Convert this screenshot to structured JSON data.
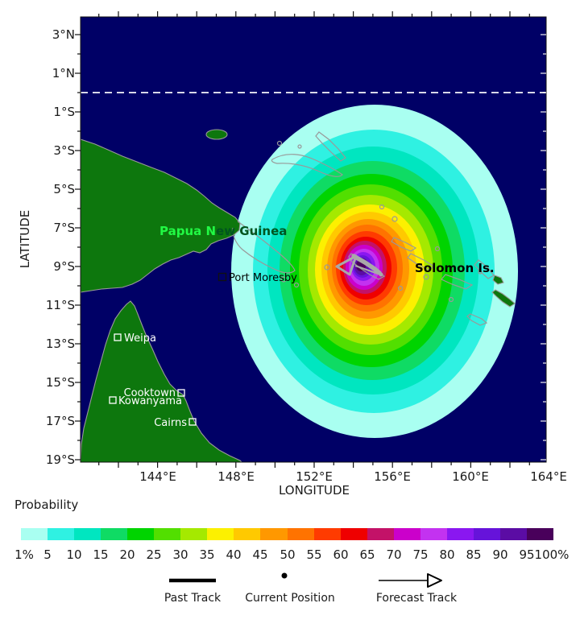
{
  "chart_data": {
    "type": "heatmap",
    "subtype": "tropical-cyclone-strike-probability-contour-map",
    "xlabel": "LONGITUDE",
    "ylabel": "LATITUDE",
    "x_ticks": [
      "144°E",
      "148°E",
      "152°E",
      "156°E",
      "160°E",
      "164°E"
    ],
    "y_ticks": [
      "3°N",
      "1°N",
      "1°S",
      "3°S",
      "5°S",
      "7°S",
      "9°S",
      "11°S",
      "13°S",
      "15°S",
      "17°S",
      "19°S"
    ],
    "x_range_deg_east": [
      141,
      164
    ],
    "y_range_deg_lat": [
      -19.1,
      3.9
    ],
    "grid": "off",
    "legend_position": "bottom",
    "probability_levels_percent": [
      1,
      5,
      10,
      15,
      20,
      25,
      30,
      35,
      40,
      45,
      50,
      55,
      60,
      65,
      70,
      75,
      80,
      85,
      90,
      95,
      100
    ],
    "palette": [
      "#A9FFF1",
      "#2FF1E2",
      "#00E6C0",
      "#0FDB64",
      "#00D400",
      "#52DF00",
      "#A5E900",
      "#FCF000",
      "#FFC900",
      "#FF9800",
      "#FF7300",
      "#FF3B00",
      "#EF0000",
      "#C31268",
      "#CB00CB",
      "#C332F0",
      "#8A17F0",
      "#6613DA",
      "#5B0CA4",
      "#49005B"
    ],
    "storm_center": {
      "approx_lon": "154.5°E",
      "approx_lat": "9°S"
    },
    "equator_dashed_line_lat": "0°"
  },
  "map": {
    "region_labels": {
      "png": {
        "text": "Papua New Guinea",
        "part1": "Papua N",
        "part2": "ew Guinea",
        "color_on_land": "#21F944",
        "color_on_sea": "#00551F"
      },
      "solomon": {
        "text": "Solomon Is.",
        "color": "#000000"
      }
    },
    "cities": [
      {
        "name": "Port Moresby",
        "color": "#000000"
      },
      {
        "name": "Weipa",
        "color": "#FFFFFF"
      },
      {
        "name": "Cooktown",
        "color": "#FFFFFF"
      },
      {
        "name": "Kowanyama",
        "color": "#FFFFFF"
      },
      {
        "name": "Cairns",
        "color": "#FFFFFF"
      }
    ]
  },
  "legend": {
    "probability_label": "Probability",
    "scale_labels": [
      "1%",
      "5",
      "10",
      "15",
      "20",
      "25",
      "30",
      "35",
      "40",
      "45",
      "50",
      "55",
      "60",
      "65",
      "70",
      "75",
      "80",
      "85",
      "90",
      "95",
      "100%"
    ],
    "symbols": [
      {
        "label": "Past Track"
      },
      {
        "label": "Current Position"
      },
      {
        "label": "Forecast Track"
      }
    ]
  },
  "colors": {
    "ocean": "#000066",
    "land": "#0D770D",
    "coastline": "#999999",
    "track": "#A9A9A9",
    "equator_line": "#D8D8E8",
    "axis_text": "#1A1A1A"
  }
}
